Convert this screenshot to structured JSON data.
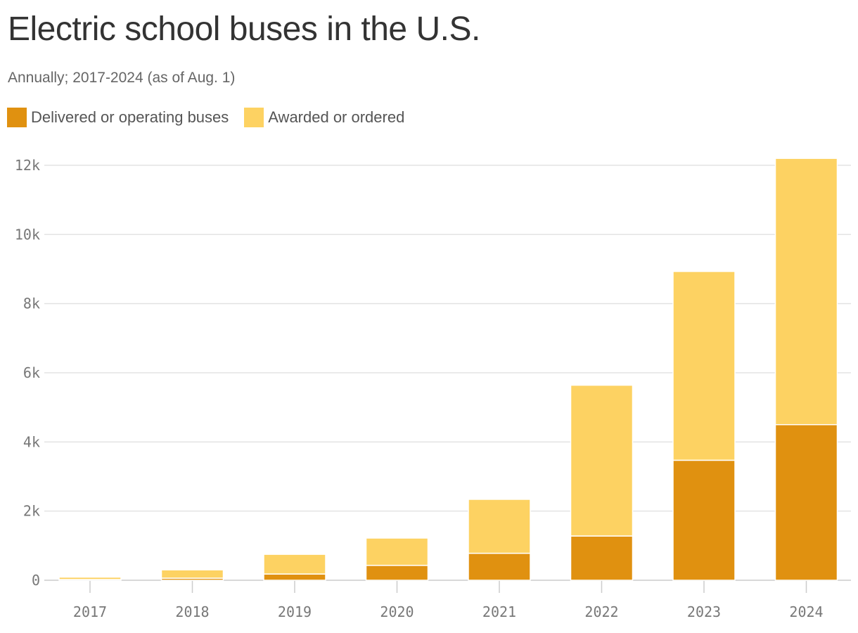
{
  "chart_data": {
    "type": "bar",
    "stacked": true,
    "title": "Electric school buses in the U.S.",
    "subtitle": "Annually; 2017-2024 (as of Aug. 1)",
    "categories": [
      "2017",
      "2018",
      "2019",
      "2020",
      "2021",
      "2022",
      "2023",
      "2024"
    ],
    "series": [
      {
        "name": "Delivered or operating buses",
        "color": "#E09110",
        "values": [
          20,
          60,
          180,
          430,
          780,
          1280,
          3470,
          4500
        ]
      },
      {
        "name": "Awarded or ordered",
        "color": "#FDD262",
        "values": [
          70,
          240,
          570,
          790,
          1560,
          4360,
          5460,
          7700
        ]
      }
    ],
    "ylim": [
      0,
      12000
    ],
    "y_ticks": [
      0,
      2000,
      4000,
      6000,
      8000,
      10000,
      12000
    ],
    "y_tick_labels": [
      "0",
      "2k",
      "4k",
      "6k",
      "8k",
      "10k",
      "12k"
    ],
    "grid": true,
    "legend_position": "top-left",
    "xlabel": "",
    "ylabel": ""
  }
}
